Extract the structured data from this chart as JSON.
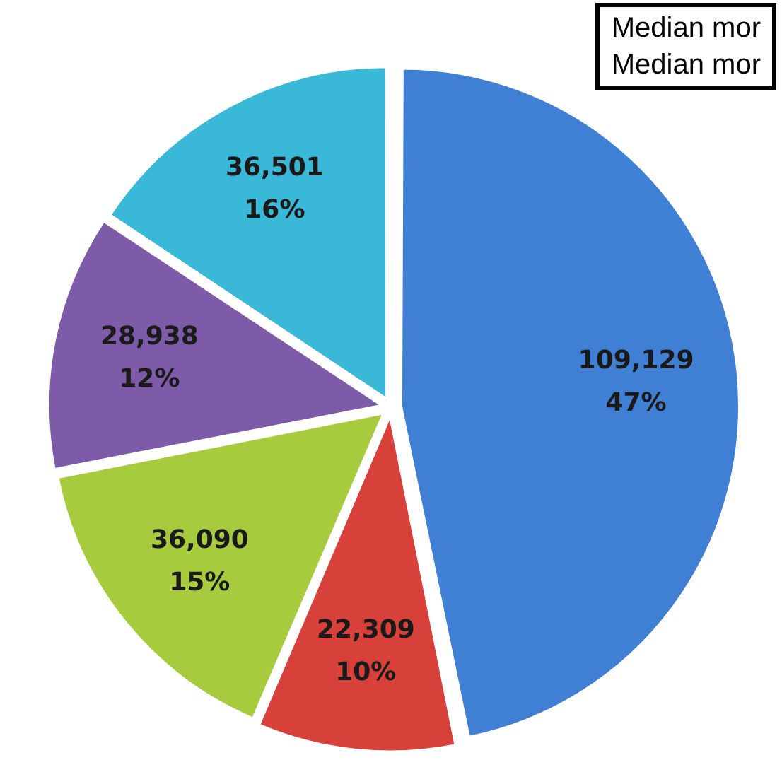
{
  "chart_data": {
    "type": "pie",
    "categories": [
      null,
      null,
      null,
      null,
      null
    ],
    "values": [
      109129,
      22309,
      36090,
      28938,
      36501
    ],
    "value_labels": [
      "109,129\n47%",
      "22,309\n10%",
      "36,090\n15%",
      "28,938\n12%",
      "36,501\n16%"
    ],
    "colors": [
      "#3f80d4",
      "#d8403a",
      "#a6cc3e",
      "#7e5ba8",
      "#3ab8d8"
    ],
    "annotations": [
      "Median mor",
      "Median mor"
    ],
    "legend": false
  }
}
